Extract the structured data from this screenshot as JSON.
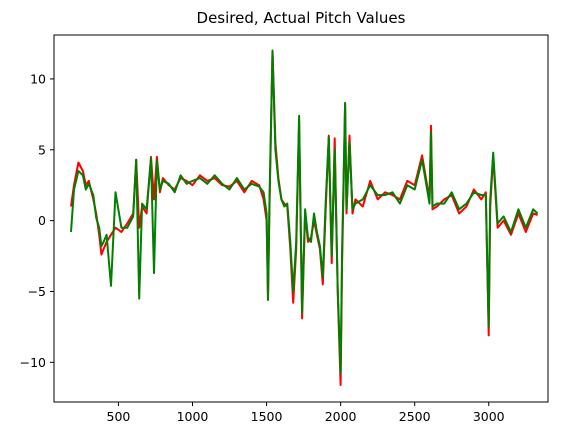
{
  "chart_data": {
    "type": "line",
    "title": "Desired, Actual Pitch Values",
    "xlabel": "",
    "ylabel": "",
    "xlim": [
      65,
      3400
    ],
    "ylim": [
      -12.8,
      13.1
    ],
    "xticks": [
      500,
      1000,
      1500,
      2000,
      2500,
      3000
    ],
    "yticks": [
      -10,
      -5,
      0,
      5,
      10
    ],
    "grid": false,
    "legend": "none",
    "series": [
      {
        "color": "#ff0000",
        "x": [
          180,
          200,
          230,
          260,
          280,
          300,
          330,
          350,
          370,
          385,
          400,
          420,
          450,
          480,
          520,
          560,
          600,
          620,
          640,
          660,
          690,
          720,
          740,
          760,
          780,
          800,
          840,
          880,
          920,
          960,
          1000,
          1050,
          1100,
          1150,
          1200,
          1250,
          1300,
          1350,
          1400,
          1450,
          1480,
          1500,
          1510,
          1520,
          1540,
          1560,
          1580,
          1600,
          1620,
          1640,
          1660,
          1680,
          1700,
          1720,
          1740,
          1760,
          1780,
          1800,
          1820,
          1840,
          1860,
          1880,
          1900,
          1920,
          1940,
          1960,
          1980,
          2000,
          2010,
          2020,
          2030,
          2040,
          2060,
          2080,
          2100,
          2150,
          2200,
          2250,
          2300,
          2350,
          2400,
          2450,
          2500,
          2550,
          2600,
          2610,
          2620,
          2650,
          2700,
          2750,
          2800,
          2850,
          2900,
          2950,
          2980,
          3000,
          3010,
          3030,
          3060,
          3100,
          3150,
          3200,
          3250,
          3300,
          3330
        ],
        "y": [
          1.0,
          2.5,
          4.1,
          3.5,
          2.5,
          2.8,
          1.5,
          0.5,
          -1.0,
          -2.4,
          -2.0,
          -1.5,
          -1.0,
          -0.5,
          -0.8,
          -0.2,
          0.5,
          4.3,
          -0.5,
          1.0,
          0.5,
          4.5,
          1.5,
          4.5,
          2.0,
          3.0,
          2.5,
          2.2,
          3.0,
          2.8,
          2.5,
          3.2,
          2.8,
          3.0,
          2.5,
          2.4,
          2.8,
          2.0,
          2.8,
          2.5,
          1.5,
          0.0,
          -5.5,
          1.0,
          12.0,
          5.5,
          3.0,
          1.5,
          1.2,
          1.0,
          -2.0,
          -5.8,
          -2.0,
          7.0,
          -6.9,
          0.5,
          -1.5,
          -1.2,
          0.0,
          -1.0,
          -2.0,
          -4.5,
          1.0,
          6.0,
          -3.0,
          5.8,
          -5.0,
          -11.6,
          -3.0,
          2.5,
          8.3,
          0.5,
          6.0,
          0.5,
          1.5,
          1.0,
          2.8,
          1.5,
          2.0,
          1.8,
          1.5,
          2.8,
          2.5,
          4.6,
          1.5,
          6.7,
          0.8,
          1.0,
          1.5,
          1.8,
          0.5,
          1.0,
          2.2,
          1.5,
          2.0,
          -8.1,
          1.0,
          4.5,
          -0.5,
          0.0,
          -1.0,
          0.5,
          -0.8,
          0.5,
          0.4
        ]
      },
      {
        "color": "#008000",
        "x": [
          180,
          200,
          230,
          260,
          280,
          300,
          330,
          350,
          370,
          385,
          400,
          420,
          450,
          480,
          520,
          560,
          600,
          620,
          640,
          660,
          690,
          720,
          740,
          760,
          780,
          800,
          840,
          880,
          920,
          960,
          1000,
          1050,
          1100,
          1150,
          1200,
          1250,
          1300,
          1350,
          1400,
          1450,
          1480,
          1500,
          1510,
          1520,
          1540,
          1560,
          1580,
          1600,
          1620,
          1640,
          1660,
          1680,
          1700,
          1720,
          1740,
          1760,
          1780,
          1800,
          1820,
          1840,
          1860,
          1880,
          1900,
          1920,
          1940,
          1960,
          1980,
          2000,
          2010,
          2020,
          2030,
          2040,
          2060,
          2080,
          2100,
          2150,
          2200,
          2250,
          2300,
          2350,
          2400,
          2450,
          2500,
          2550,
          2600,
          2610,
          2620,
          2650,
          2700,
          2750,
          2800,
          2850,
          2900,
          2950,
          2980,
          3000,
          3010,
          3030,
          3060,
          3100,
          3150,
          3200,
          3250,
          3300,
          3330
        ],
        "y": [
          -0.8,
          2.2,
          3.5,
          3.2,
          2.2,
          2.6,
          1.8,
          0.2,
          -0.5,
          -1.8,
          -1.5,
          -1.0,
          -4.6,
          2.0,
          -0.5,
          -0.5,
          0.3,
          4.3,
          -5.5,
          1.2,
          0.8,
          4.4,
          -3.7,
          4.2,
          2.2,
          2.8,
          2.6,
          2.0,
          3.2,
          2.6,
          2.8,
          3.0,
          2.6,
          3.2,
          2.6,
          2.2,
          3.0,
          2.2,
          2.6,
          2.4,
          2.0,
          0.5,
          -5.6,
          1.5,
          12.0,
          5.0,
          2.8,
          1.5,
          1.0,
          1.2,
          -1.5,
          -5.0,
          -1.5,
          7.4,
          -6.5,
          0.8,
          -1.2,
          -1.5,
          0.5,
          -0.8,
          -1.8,
          -4.0,
          1.5,
          5.9,
          -2.5,
          5.0,
          -4.8,
          -10.8,
          -2.0,
          3.0,
          8.3,
          0.8,
          5.5,
          0.8,
          1.2,
          1.5,
          2.5,
          1.8,
          1.8,
          2.0,
          1.2,
          2.5,
          2.2,
          4.3,
          1.2,
          6.2,
          1.0,
          1.2,
          1.2,
          2.0,
          0.8,
          1.2,
          2.0,
          1.8,
          1.8,
          -7.5,
          1.5,
          4.8,
          -0.2,
          0.3,
          -0.8,
          0.8,
          -0.5,
          0.8,
          0.5
        ]
      }
    ]
  }
}
